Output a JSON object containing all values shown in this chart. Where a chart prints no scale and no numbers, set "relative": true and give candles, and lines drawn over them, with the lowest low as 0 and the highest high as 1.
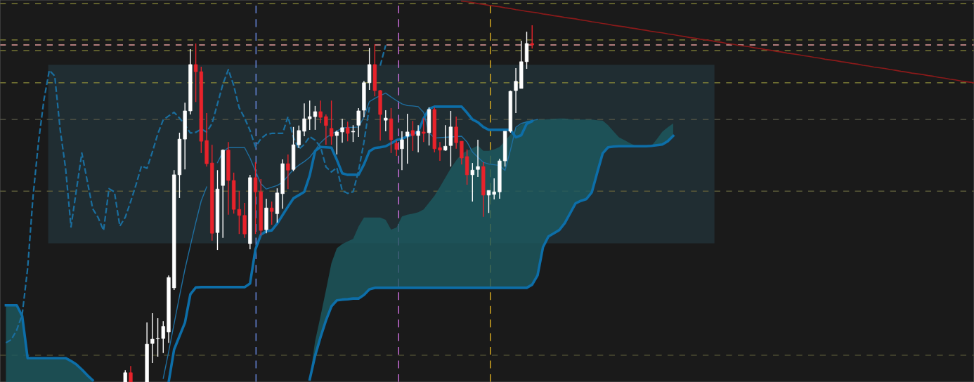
{
  "chart_data": {
    "type": "candlestick",
    "relative": true,
    "categories": [
      null,
      null,
      null,
      null,
      null,
      null,
      null,
      null,
      null,
      null,
      null,
      null,
      null,
      null,
      null,
      null,
      null,
      null,
      null,
      null,
      null,
      null,
      null,
      null,
      null,
      null,
      null,
      null,
      null,
      null,
      null,
      null,
      null,
      null,
      null,
      null,
      null,
      null,
      null,
      null,
      null,
      null,
      null,
      null,
      null,
      null,
      null,
      null,
      null,
      null,
      null,
      null,
      null,
      null,
      null,
      null,
      null,
      null,
      null,
      null,
      null,
      null,
      null,
      null,
      null,
      null,
      null,
      null,
      null,
      null,
      null,
      null,
      null,
      null,
      null,
      null,
      null,
      null,
      null,
      null,
      null,
      null,
      null,
      null,
      null,
      null,
      null,
      null,
      null,
      null,
      null,
      null,
      null,
      null,
      null,
      null,
      null,
      null,
      null,
      null,
      null,
      null,
      null,
      null,
      null,
      null,
      null,
      null,
      null,
      null,
      null,
      null,
      null,
      null,
      null,
      null,
      null,
      null,
      null,
      null,
      null,
      null,
      null,
      null,
      null,
      null,
      null,
      null,
      null,
      null,
      null,
      null,
      null,
      null,
      null,
      null,
      null,
      null,
      null,
      null,
      null,
      null,
      null,
      null,
      null,
      null,
      null,
      null,
      null,
      null,
      null,
      null,
      null,
      null,
      null,
      null,
      null,
      null,
      null,
      null,
      null,
      null,
      null,
      null,
      null,
      null,
      null,
      null,
      null,
      null,
      null,
      null,
      null,
      null,
      null,
      null,
      null,
      null,
      null,
      null
    ],
    "colors": [
      null,
      null,
      null,
      null,
      null,
      null,
      null,
      null,
      null,
      null,
      null,
      null,
      null,
      null,
      null,
      null,
      null,
      null,
      null,
      null,
      null,
      null,
      "#ffffff",
      "#e8232b",
      null,
      null,
      "#ffffff",
      "#ffffff",
      "#ffffff",
      "#ffffff",
      "#ffffff",
      "#ffffff",
      "#ffffff",
      "#ffffff",
      "#ffffff",
      "#e8232b",
      "#e8232b",
      "#e8232b",
      "#e8232b",
      "#ffffff",
      "#ffffff",
      "#e8232b",
      "#e8232b",
      "#e8232b",
      "#e8232b",
      "#ffffff",
      "#e8232b",
      "#e8232b",
      "#ffffff",
      "#e8232b",
      "#ffffff",
      "#ffffff",
      "#e8232b",
      "#ffffff",
      "#ffffff",
      "#ffffff",
      "#ffffff",
      "#ffffff",
      "#e8232b",
      "#e8232b",
      "#e8232b",
      "#ffffff",
      "#ffffff",
      "#e8232b",
      "#ffffff",
      "#ffffff",
      "#ffffff",
      "#ffffff",
      "#e8232b",
      "#e8232b",
      "#ffffff",
      "#e8232b",
      "#e8232b",
      "#ffffff",
      "#ffffff",
      "#e8232b",
      "#ffffff",
      "#e8232b",
      "#ffffff",
      "#e8232b",
      "#e8232b",
      "#ffffff",
      "#ffffff",
      "#e8232b",
      "#e8232b",
      "#e8232b",
      "#ffffff",
      "#ffffff",
      "#e8232b",
      "#ffffff",
      "#ffffff",
      "#ffffff",
      "#ffffff",
      "#ffffff",
      "#ffffff",
      "#ffffff",
      "#ffffff",
      "#e8232b",
      null,
      null,
      null,
      null,
      null,
      null,
      null,
      null,
      null,
      null,
      null,
      null,
      null,
      null,
      null,
      null,
      null,
      null,
      null,
      null,
      null,
      null,
      null,
      null,
      null,
      null,
      null,
      null,
      null,
      null,
      null,
      null,
      null,
      null,
      null,
      null,
      null,
      null,
      null,
      null,
      null,
      null,
      null,
      null,
      null,
      null,
      null,
      null,
      null,
      null,
      null,
      null,
      null,
      null,
      null,
      null,
      null,
      null,
      null,
      null,
      null,
      null,
      null,
      null,
      null,
      null,
      null,
      null,
      null,
      null,
      null,
      null,
      null,
      null,
      null,
      null,
      null,
      null,
      null,
      null,
      null,
      null
    ],
    "ohlc": [
      null,
      null,
      null,
      null,
      null,
      null,
      null,
      null,
      null,
      null,
      null,
      null,
      null,
      null,
      null,
      null,
      null,
      null,
      null,
      null,
      null,
      null,
      [
        0,
        0.033,
        0,
        0.026
      ],
      [
        0.026,
        0.045,
        0,
        0
      ],
      null,
      null,
      [
        0,
        0.167,
        0,
        0.106
      ],
      [
        0.108,
        0.193,
        0.053,
        0.12
      ],
      [
        0.121,
        0.179,
        0.071,
        0.122
      ],
      [
        0.122,
        0.171,
        0.081,
        0.156
      ],
      [
        0.14,
        0.299,
        0.11,
        0.293
      ],
      [
        0.264,
        0.594,
        0.258,
        0.581
      ],
      [
        0.581,
        0.699,
        0.516,
        0.681
      ],
      [
        0.681,
        0.783,
        0.596,
        0.76
      ],
      [
        0.76,
        0.933,
        0.75,
        0.89
      ],
      [
        0.89,
        0.949,
        0.785,
        0.87
      ],
      [
        0.87,
        0.884,
        0.642,
        0.675
      ],
      [
        0.677,
        0.754,
        0.604,
        0.612
      ],
      [
        0.614,
        0.665,
        0.396,
        0.417
      ],
      [
        0.419,
        0.594,
        0.37,
        0.541
      ],
      [
        0.551,
        0.652,
        0.404,
        0.65
      ],
      [
        0.65,
        0.673,
        0.469,
        0.565
      ],
      [
        0.565,
        0.587,
        0.472,
        0.484
      ],
      [
        0.484,
        0.535,
        0.415,
        0.467
      ],
      [
        0.467,
        0.502,
        0.404,
        0.415
      ],
      [
        0.388,
        0.581,
        0.372,
        0.573
      ],
      [
        0.573,
        0.616,
        0.415,
        0.533
      ],
      [
        0.533,
        0.569,
        0.411,
        0.425
      ],
      [
        0.427,
        0.514,
        0.417,
        0.488
      ],
      [
        0.488,
        0.506,
        0.441,
        0.478
      ],
      [
        0.472,
        0.543,
        0.447,
        0.53
      ],
      [
        0.528,
        0.624,
        0.486,
        0.612
      ],
      [
        0.612,
        0.638,
        0.541,
        0.594
      ],
      [
        0.596,
        0.715,
        0.591,
        0.665
      ],
      [
        0.665,
        0.719,
        0.656,
        0.705
      ],
      [
        0.703,
        0.781,
        0.689,
        0.738
      ],
      [
        0.738,
        0.789,
        0.707,
        0.744
      ],
      [
        0.744,
        0.774,
        0.707,
        0.758
      ],
      [
        0.758,
        0.789,
        0.726,
        0.742
      ],
      [
        0.744,
        0.75,
        0.665,
        0.719
      ],
      [
        0.711,
        0.789,
        0.665,
        0.689
      ],
      [
        0.691,
        0.705,
        0.638,
        0.701
      ],
      [
        0.701,
        0.738,
        0.671,
        0.713
      ],
      [
        0.713,
        0.73,
        0.675,
        0.697
      ],
      [
        0.701,
        0.72,
        0.673,
        0.703
      ],
      [
        0.72,
        0.768,
        0.687,
        0.76
      ],
      [
        0.762,
        0.844,
        0.742,
        0.839
      ],
      [
        0.839,
        0.937,
        0.819,
        0.89
      ],
      [
        0.89,
        0.947,
        0.801,
        0.817
      ],
      [
        0.817,
        0.819,
        0.677,
        0.75
      ],
      [
        0.734,
        0.762,
        0.703,
        0.74
      ],
      [
        0.738,
        0.768,
        0.642,
        0.679
      ],
      [
        0.669,
        0.677,
        0.634,
        0.652
      ],
      [
        0.654,
        0.703,
        0.594,
        0.679
      ],
      [
        0.689,
        0.752,
        0.612,
        0.701
      ],
      [
        0.705,
        0.732,
        0.648,
        0.691
      ],
      [
        0.691,
        0.72,
        0.644,
        0.703
      ],
      [
        0.701,
        0.74,
        0.673,
        0.697
      ],
      [
        0.699,
        0.77,
        0.663,
        0.764
      ],
      [
        0.764,
        0.77,
        0.644,
        0.654
      ],
      [
        0.657,
        0.673,
        0.62,
        0.65
      ],
      [
        0.65,
        0.72,
        0.648,
        0.661
      ],
      [
        0.663,
        0.76,
        0.604,
        0.715
      ],
      [
        0.715,
        0.744,
        0.654,
        0.671
      ],
      [
        0.675,
        0.675,
        0.61,
        0.628
      ],
      [
        0.632,
        0.652,
        0.553,
        0.581
      ],
      [
        0.581,
        0.614,
        0.506,
        0.594
      ],
      [
        0.596,
        0.679,
        0.575,
        0.604
      ],
      [
        0.604,
        0.616,
        0.463,
        0.524
      ],
      [
        0.524,
        0.537,
        0.474,
        0.537
      ],
      [
        0.526,
        0.571,
        0.512,
        0.533
      ],
      [
        0.533,
        0.626,
        0.514,
        0.62
      ],
      [
        0.62,
        0.703,
        0.604,
        0.703
      ],
      [
        0.703,
        0.817,
        0.699,
        0.815
      ],
      [
        0.817,
        0.88,
        0.754,
        0.843
      ],
      [
        0.823,
        0.957,
        0.823,
        0.898
      ],
      [
        0.898,
        0.982,
        0.878,
        0.949
      ],
      [
        0.949,
        1,
        0.935,
        0.945
      ],
      null,
      null,
      null,
      null,
      null,
      null,
      null,
      null,
      null,
      null,
      null,
      null,
      null,
      null,
      null,
      null,
      null,
      null,
      null,
      null,
      null,
      null,
      null,
      null,
      null,
      null,
      null,
      null,
      null,
      null,
      null,
      null,
      null,
      null,
      null,
      null,
      null,
      null,
      null,
      null,
      null,
      null,
      null,
      null,
      null,
      null,
      null,
      null,
      null,
      null,
      null,
      null,
      null,
      null,
      null,
      null,
      null,
      null,
      null,
      null,
      null,
      null,
      null,
      null,
      null,
      null,
      null,
      null,
      null,
      null,
      null,
      null,
      null,
      null,
      null,
      null,
      null,
      null,
      null,
      null,
      null,
      null
    ],
    "series": [
      {
        "type": "line",
        "color": "#0d6ea8",
        "line_style": "solid",
        "values": [
          0.215,
          0.215,
          0.215,
          0.185,
          0.067,
          0.067,
          0.067,
          0.067,
          0.067,
          0.067,
          0.067,
          0.067,
          0.059,
          0.049,
          0.035,
          0.019,
          0.005,
          null,
          null,
          null,
          null,
          null,
          null,
          null,
          null,
          null,
          null,
          null,
          null,
          null,
          null,
          null,
          null,
          null,
          null,
          null,
          null,
          null,
          null,
          null,
          null,
          null,
          null,
          null,
          null,
          null,
          null,
          null,
          null,
          null,
          null,
          null,
          null,
          null,
          null,
          null,
          0.007,
          0.074,
          0.126,
          0.173,
          0.212,
          0.229,
          0.231,
          0.232,
          0.234,
          0.234,
          0.244,
          0.26,
          0.264,
          0.264,
          0.264,
          0.264,
          0.264,
          0.264,
          0.264,
          0.264,
          0.264,
          0.264,
          0.264,
          0.264,
          0.264,
          0.264,
          0.264,
          0.264,
          0.264,
          0.264,
          0.264,
          0.264,
          0.264,
          0.264,
          0.264,
          0.264,
          0.264,
          0.264,
          0.264,
          0.264,
          0.264,
          0.273,
          0.299,
          0.378,
          0.408,
          0.417,
          0.426,
          0.445,
          0.473,
          0.501,
          0.508,
          0.513,
          0.532,
          0.587,
          0.641,
          0.658,
          0.66,
          0.661,
          0.661,
          0.661,
          0.661,
          0.661,
          0.661,
          0.662,
          0.664,
          0.666,
          0.675,
          0.69,
          null,
          null,
          null,
          null,
          null,
          null,
          null,
          null,
          null,
          null,
          null,
          null,
          null,
          null,
          null,
          null,
          null,
          null,
          null,
          null,
          null,
          null,
          null,
          null,
          null,
          null,
          null,
          null,
          null,
          null,
          null,
          null,
          null,
          null,
          null,
          null,
          null,
          null,
          null,
          null,
          null,
          null,
          null,
          null,
          null,
          null,
          null,
          null,
          null,
          null,
          null,
          null,
          null,
          null,
          null,
          null
        ],
        "lower": [
          0,
          0,
          0,
          0,
          0,
          0,
          0,
          0,
          0,
          0,
          0,
          0,
          0,
          0,
          0,
          0,
          0,
          null,
          null,
          null,
          null,
          null,
          null,
          null,
          null,
          null,
          null,
          null,
          null,
          null,
          null,
          null,
          null,
          null,
          null,
          null,
          null,
          null,
          null,
          null,
          null,
          null,
          null,
          null,
          null,
          null,
          null,
          null,
          null,
          null,
          null,
          null,
          null,
          null,
          null,
          null,
          0.007,
          0.074,
          0.126,
          0.173,
          0.212,
          0.229,
          0.231,
          0.232,
          0.234,
          0.234,
          0.244,
          0.26,
          0.264,
          0.264,
          0.264,
          0.264,
          0.264,
          0.264,
          0.264,
          0.264,
          0.264,
          0.264,
          0.264,
          0.264,
          0.264,
          0.264,
          0.264,
          0.264,
          0.264,
          0.264,
          0.264,
          0.264,
          0.264,
          0.264,
          0.264,
          0.264,
          0.264,
          0.264,
          0.264,
          0.264,
          0.264,
          0.273,
          0.299,
          0.378,
          0.408,
          0.417,
          0.426,
          0.445,
          0.473,
          0.501,
          0.508,
          0.513,
          0.532,
          0.587,
          0.641,
          0.658,
          0.66,
          0.661,
          0.661,
          0.661,
          0.661,
          0.661,
          0.661,
          0.662,
          0.664,
          0.666,
          0.675,
          0.69,
          null,
          null,
          null,
          null,
          null,
          null,
          null,
          null,
          null,
          null,
          null,
          null,
          null,
          null,
          null,
          null,
          null,
          null,
          null,
          null,
          null,
          null,
          null,
          null,
          null,
          null,
          null,
          null,
          null,
          null,
          null,
          null,
          null,
          null,
          null,
          null,
          null,
          null,
          null,
          null,
          null,
          null,
          null,
          null,
          null,
          null,
          null,
          null,
          null,
          null,
          null,
          null,
          null,
          null,
          null,
          null
        ],
        "upper": [
          0.215,
          0.215,
          0.215,
          0.185,
          0.067,
          0.067,
          0.067,
          0.067,
          0.067,
          0.067,
          0.067,
          0.067,
          0.059,
          0.049,
          0.035,
          0.019,
          0.005,
          null,
          null,
          null,
          null,
          null,
          null,
          null,
          null,
          null,
          null,
          null,
          null,
          null,
          null,
          null,
          null,
          null,
          null,
          null,
          null,
          null,
          null,
          null,
          null,
          null,
          null,
          null,
          null,
          null,
          null,
          null,
          null,
          null,
          null,
          null,
          null,
          null,
          null,
          null,
          0.01,
          0.115,
          0.185,
          0.258,
          0.333,
          0.375,
          0.387,
          0.394,
          0.401,
          0.436,
          0.461,
          0.461,
          0.461,
          0.461,
          0.455,
          0.427,
          0.433,
          0.464,
          0.469,
          0.472,
          0.476,
          0.484,
          0.503,
          0.522,
          0.547,
          0.573,
          0.599,
          0.621,
          0.64,
          0.648,
          0.655,
          0.663,
          0.648,
          0.648,
          0.652,
          0.659,
          0.676,
          0.694,
          0.71,
          0.722,
          0.733,
          0.734,
          0.736,
          0.736,
          0.737,
          0.738,
          0.739,
          0.739,
          0.737,
          0.736,
          0.736,
          0.736,
          0.736,
          0.734,
          0.733,
          0.72,
          0.703,
          0.686,
          0.678,
          0.67,
          0.663,
          0.661,
          0.661,
          0.662,
          0.681,
          0.702,
          0.714,
          0.725,
          null,
          null,
          null,
          null,
          null,
          null,
          null,
          null,
          null,
          null,
          null,
          null,
          null,
          null,
          null,
          null,
          null,
          null,
          null,
          null,
          null,
          null,
          null,
          null,
          null,
          null,
          null,
          null,
          null,
          null,
          null,
          null,
          null,
          null,
          null,
          null,
          null,
          null,
          null,
          null,
          null,
          null,
          null,
          null,
          null,
          null,
          null,
          null,
          null,
          null,
          null,
          null,
          null,
          null,
          null,
          null
        ]
      },
      {
        "type": "line",
        "color": "#1f6fa0",
        "line_style": "solid",
        "values": [
          null,
          null,
          null,
          null,
          null,
          null,
          null,
          null,
          null,
          null,
          null,
          null,
          null,
          null,
          null,
          null,
          null,
          null,
          null,
          null,
          null,
          null,
          null,
          null,
          null,
          null,
          null,
          null,
          null,
          0.01,
          0.085,
          0.163,
          0.241,
          0.316,
          0.382,
          0.447,
          0.508,
          0.547,
          null,
          0.615,
          0.645,
          0.657,
          0.657,
          0.657,
          0.657,
          0.628,
          0.591,
          0.556,
          0.541,
          0.546,
          0.551,
          0.56,
          0.578,
          0.596,
          0.608,
          0.618,
          0.63,
          0.65,
          0.671,
          0.685,
          0.695,
          0.703,
          0.712,
          0.714,
          0.714,
          0.715,
          0.743,
          0.786,
          0.795,
          0.803,
          0.81,
          0.799,
          0.789,
          0.78,
          0.775,
          0.774,
          0.772,
          0.756,
          0.699,
          0.684,
          0.685,
          0.686,
          0.687,
          0.688,
          0.689,
          0.673,
          0.645,
          0.63,
          0.616,
          0.611,
          0.609,
          0.607,
          0.593,
          0.65,
          0.714,
          0.725,
          0.729,
          0.733,
          0.736,
          null,
          null,
          null,
          null,
          null,
          null,
          null,
          null,
          null,
          null,
          null,
          null,
          null,
          null,
          null,
          null,
          null,
          null,
          null,
          null,
          null,
          null,
          null,
          null,
          null,
          null,
          null,
          null,
          null,
          null,
          null,
          null,
          null,
          null,
          null,
          null,
          null,
          null,
          null,
          null,
          null,
          null,
          null,
          null,
          null,
          null,
          null,
          null,
          null,
          null,
          null,
          null,
          null,
          null,
          null,
          null,
          null,
          null,
          null,
          null,
          null,
          null,
          null,
          null,
          null,
          null,
          null,
          null,
          null,
          null,
          null,
          null,
          null,
          null,
          null,
          null,
          null,
          null,
          null,
          null,
          null
        ]
      },
      {
        "type": "line",
        "color": "#0d6ea8",
        "line_style": "solid",
        "values": [
          null,
          null,
          null,
          null,
          null,
          null,
          null,
          null,
          null,
          null,
          null,
          null,
          null,
          null,
          null,
          null,
          null,
          null,
          null,
          null,
          null,
          null,
          null,
          null,
          null,
          null,
          null,
          null,
          null,
          null,
          0,
          0.091,
          0.129,
          0.166,
          0.246,
          0.265,
          0.266,
          0.266,
          0.266,
          0.266,
          0.266,
          0.266,
          0.266,
          0.266,
          0.266,
          0.276,
          0.372,
          0.413,
          0.423,
          0.425,
          0.444,
          0.468,
          0.492,
          0.515,
          0.524,
          0.533,
          0.579,
          0.648,
          0.659,
          0.658,
          0.657,
          0.623,
          0.585,
          0.581,
          0.581,
          0.581,
          0.61,
          0.647,
          0.656,
          0.658,
          0.661,
          0.669,
          0.678,
          0.682,
          0.689,
          0.695,
          0.702,
          0.739,
          0.766,
          0.772,
          0.772,
          0.772,
          0.772,
          0.772,
          0.772,
          0.755,
          0.736,
          0.728,
          0.715,
          0.707,
          0.707,
          0.707,
          0.707,
          0.707,
          0.686,
          0.692,
          0.724,
          0.731,
          null,
          null,
          null,
          null,
          null,
          null,
          null,
          null,
          null,
          null,
          null,
          null,
          null,
          null,
          null,
          null,
          null,
          null,
          null,
          null,
          null,
          null,
          null,
          null,
          null,
          null,
          null,
          null,
          null,
          null,
          null,
          null,
          null,
          null,
          null,
          null,
          null,
          null,
          null,
          null,
          null,
          null,
          null,
          null,
          null,
          null,
          null,
          null,
          null,
          null,
          null,
          null,
          null,
          null,
          null,
          null,
          null,
          null,
          null,
          null,
          null,
          null,
          null,
          null,
          null,
          null,
          null,
          null,
          null,
          null,
          null,
          null,
          null,
          null,
          null,
          null,
          null,
          null,
          null,
          null,
          null,
          null
        ]
      },
      {
        "type": "line",
        "color": "#1a6e9e",
        "line_style": "dashed",
        "values": [
          0.11,
          0.119,
          0.146,
          0.189,
          0.318,
          0.52,
          0.672,
          0.79,
          0.874,
          0.858,
          0.708,
          0.599,
          0.435,
          0.539,
          0.642,
          0.563,
          0.486,
          0.461,
          0.425,
          0.542,
          0.533,
          0.437,
          0.462,
          0.506,
          0.554,
          0.606,
          0.599,
          0.645,
          0.696,
          0.735,
          0.746,
          0.756,
          0.74,
          0.721,
          0.698,
          0.7,
          0.709,
          0.701,
          0.725,
          0.78,
          0.835,
          0.876,
          0.831,
          0.769,
          0.74,
          0.705,
          0.659,
          0.682,
          0.694,
          0.697,
          0.697,
          0.697,
          0.744,
          0.686,
          0.653,
          0.666,
          0.688,
          0.678,
          0.659,
          0.603,
          0.589,
          0.601,
          0.536,
          0.529,
          0.533,
          0.592,
          0.673,
          0.771,
          null,
          0.887,
          0.944,
          null,
          null,
          null,
          null,
          null,
          null,
          null,
          null,
          null,
          null,
          null,
          null,
          null,
          null,
          null,
          null,
          null,
          null,
          null,
          null,
          null,
          null,
          null,
          null,
          null,
          null,
          null,
          null,
          null,
          null,
          null,
          null,
          null,
          null,
          null,
          null,
          null,
          null,
          null,
          null,
          null,
          null,
          null,
          null,
          null,
          null,
          null,
          null,
          null,
          null,
          null,
          null,
          null,
          null,
          null,
          null,
          null,
          null,
          null,
          null,
          null,
          null,
          null,
          null,
          null,
          null,
          null,
          null,
          null,
          null,
          null,
          null,
          null,
          null,
          null,
          null,
          null,
          null,
          null,
          null,
          null,
          null,
          null,
          null,
          null,
          null,
          null,
          null,
          null,
          null,
          null,
          null,
          null,
          null,
          null,
          null,
          null,
          null,
          null,
          null,
          null,
          null,
          null,
          null,
          null,
          null,
          null,
          null,
          null
        ]
      },
      {
        "type": "line",
        "color": "#8b1a1a",
        "line_style": "solid",
        "values": [
          null,
          null,
          null,
          null,
          null,
          null,
          null,
          null,
          null,
          null,
          null,
          null,
          null,
          null,
          null,
          null,
          null,
          null,
          null,
          null,
          null,
          null,
          null,
          null,
          null,
          null,
          null,
          null,
          null,
          null,
          null,
          null,
          null,
          null,
          null,
          null,
          null,
          null,
          null,
          null,
          null,
          null,
          null,
          null,
          null,
          null,
          null,
          null,
          null,
          null,
          null,
          null,
          null,
          null,
          null,
          null,
          null,
          null,
          null,
          null,
          null,
          null,
          null,
          null,
          null,
          null,
          null,
          null,
          null,
          null,
          null,
          null,
          null,
          null,
          null,
          null,
          null,
          null,
          null,
          null,
          null,
          null,
          null,
          null,
          1.068,
          1.066,
          1.064,
          1.061,
          1.059,
          1.056,
          1.054,
          1.052,
          1.049,
          1.047,
          1.044,
          1.042,
          1.039,
          1.037,
          1.035,
          1.032,
          1.03,
          1.027,
          1.025,
          1.022,
          1.02,
          1.018,
          1.015,
          1.013,
          1.01,
          1.008,
          1.005,
          1.003,
          1.0,
          0.998,
          0.996,
          0.993,
          0.991,
          0.988,
          0.986,
          0.983,
          0.981,
          0.979,
          0.976,
          0.974,
          0.971,
          0.969,
          0.966,
          0.964,
          0.961,
          0.959,
          0.957,
          0.954,
          0.952,
          0.949,
          0.947,
          0.944,
          0.942,
          0.94,
          0.937,
          0.935,
          0.932,
          0.93,
          0.927,
          0.925,
          0.922,
          0.92,
          0.918,
          0.915,
          0.913,
          0.91,
          0.908,
          0.905,
          0.903,
          0.901,
          0.898,
          0.896,
          0.893,
          0.891,
          0.888,
          0.886,
          0.883,
          0.881,
          0.879,
          0.876,
          0.874,
          0.871,
          0.869,
          0.866,
          0.864,
          0.862,
          0.859,
          0.857,
          0.854,
          0.852,
          0.849,
          0.847,
          0.844,
          0.842,
          0.84,
          0.837
        ]
      }
    ],
    "ref_lines": [
      {
        "axis": "y",
        "value": 1.061,
        "color": "#8a8a3a",
        "line_style": "dashed"
      },
      {
        "axis": "y",
        "value": 0.959,
        "color": "#8a8a3a",
        "line_style": "dashed"
      },
      {
        "axis": "y",
        "value": 0.945,
        "color": "#e8a0a0",
        "line_style": "dashed"
      },
      {
        "axis": "y",
        "value": 0.929,
        "color": "#8a8a3a",
        "line_style": "dashed"
      },
      {
        "axis": "y",
        "value": 0.839,
        "color": "#8a8a3a",
        "line_style": "dashed"
      },
      {
        "axis": "y",
        "value": 0.736,
        "color": "#5a5a48",
        "line_style": "dashed"
      },
      {
        "axis": "y",
        "value": 0.535,
        "color": "#5a5a38",
        "line_style": "dashed"
      },
      {
        "axis": "y",
        "value": 0.075,
        "color": "#5a5a38",
        "line_style": "dashed"
      }
    ],
    "bands": [
      {
        "axis": "y",
        "from": 0.39,
        "to": 0.888,
        "color": "#4fb6e0"
      }
    ]
  }
}
